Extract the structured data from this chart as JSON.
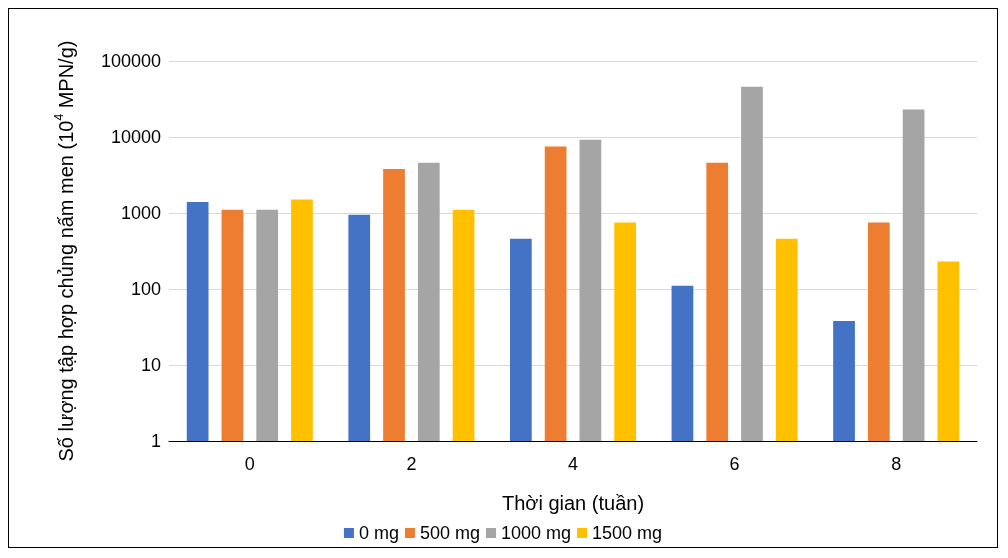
{
  "chart_data": {
    "type": "bar",
    "xlabel": "Thời gian (tuần)",
    "ylabel": "Số lượng tập hợp chủng nấm men (10$^{4}$ MPN/g)",
    "categories": [
      "0",
      "2",
      "4",
      "6",
      "8"
    ],
    "series": [
      {
        "name": "0 mg",
        "color": "#4472c4",
        "values": [
          1400,
          950,
          460,
          110,
          38
        ]
      },
      {
        "name": "500 mg",
        "color": "#ed7d31",
        "values": [
          1100,
          3800,
          7500,
          4600,
          750
        ]
      },
      {
        "name": "1000 mg",
        "color": "#a5a5a5",
        "values": [
          1100,
          4600,
          9200,
          46000,
          23000
        ]
      },
      {
        "name": "1500 mg",
        "color": "#ffc000",
        "values": [
          1500,
          1100,
          750,
          460,
          230
        ]
      }
    ],
    "log": true,
    "ylim": [
      1,
      100000
    ],
    "yticks": [
      1,
      10,
      100,
      1000,
      10000,
      100000
    ],
    "grid": "y",
    "legend": "bottom"
  }
}
